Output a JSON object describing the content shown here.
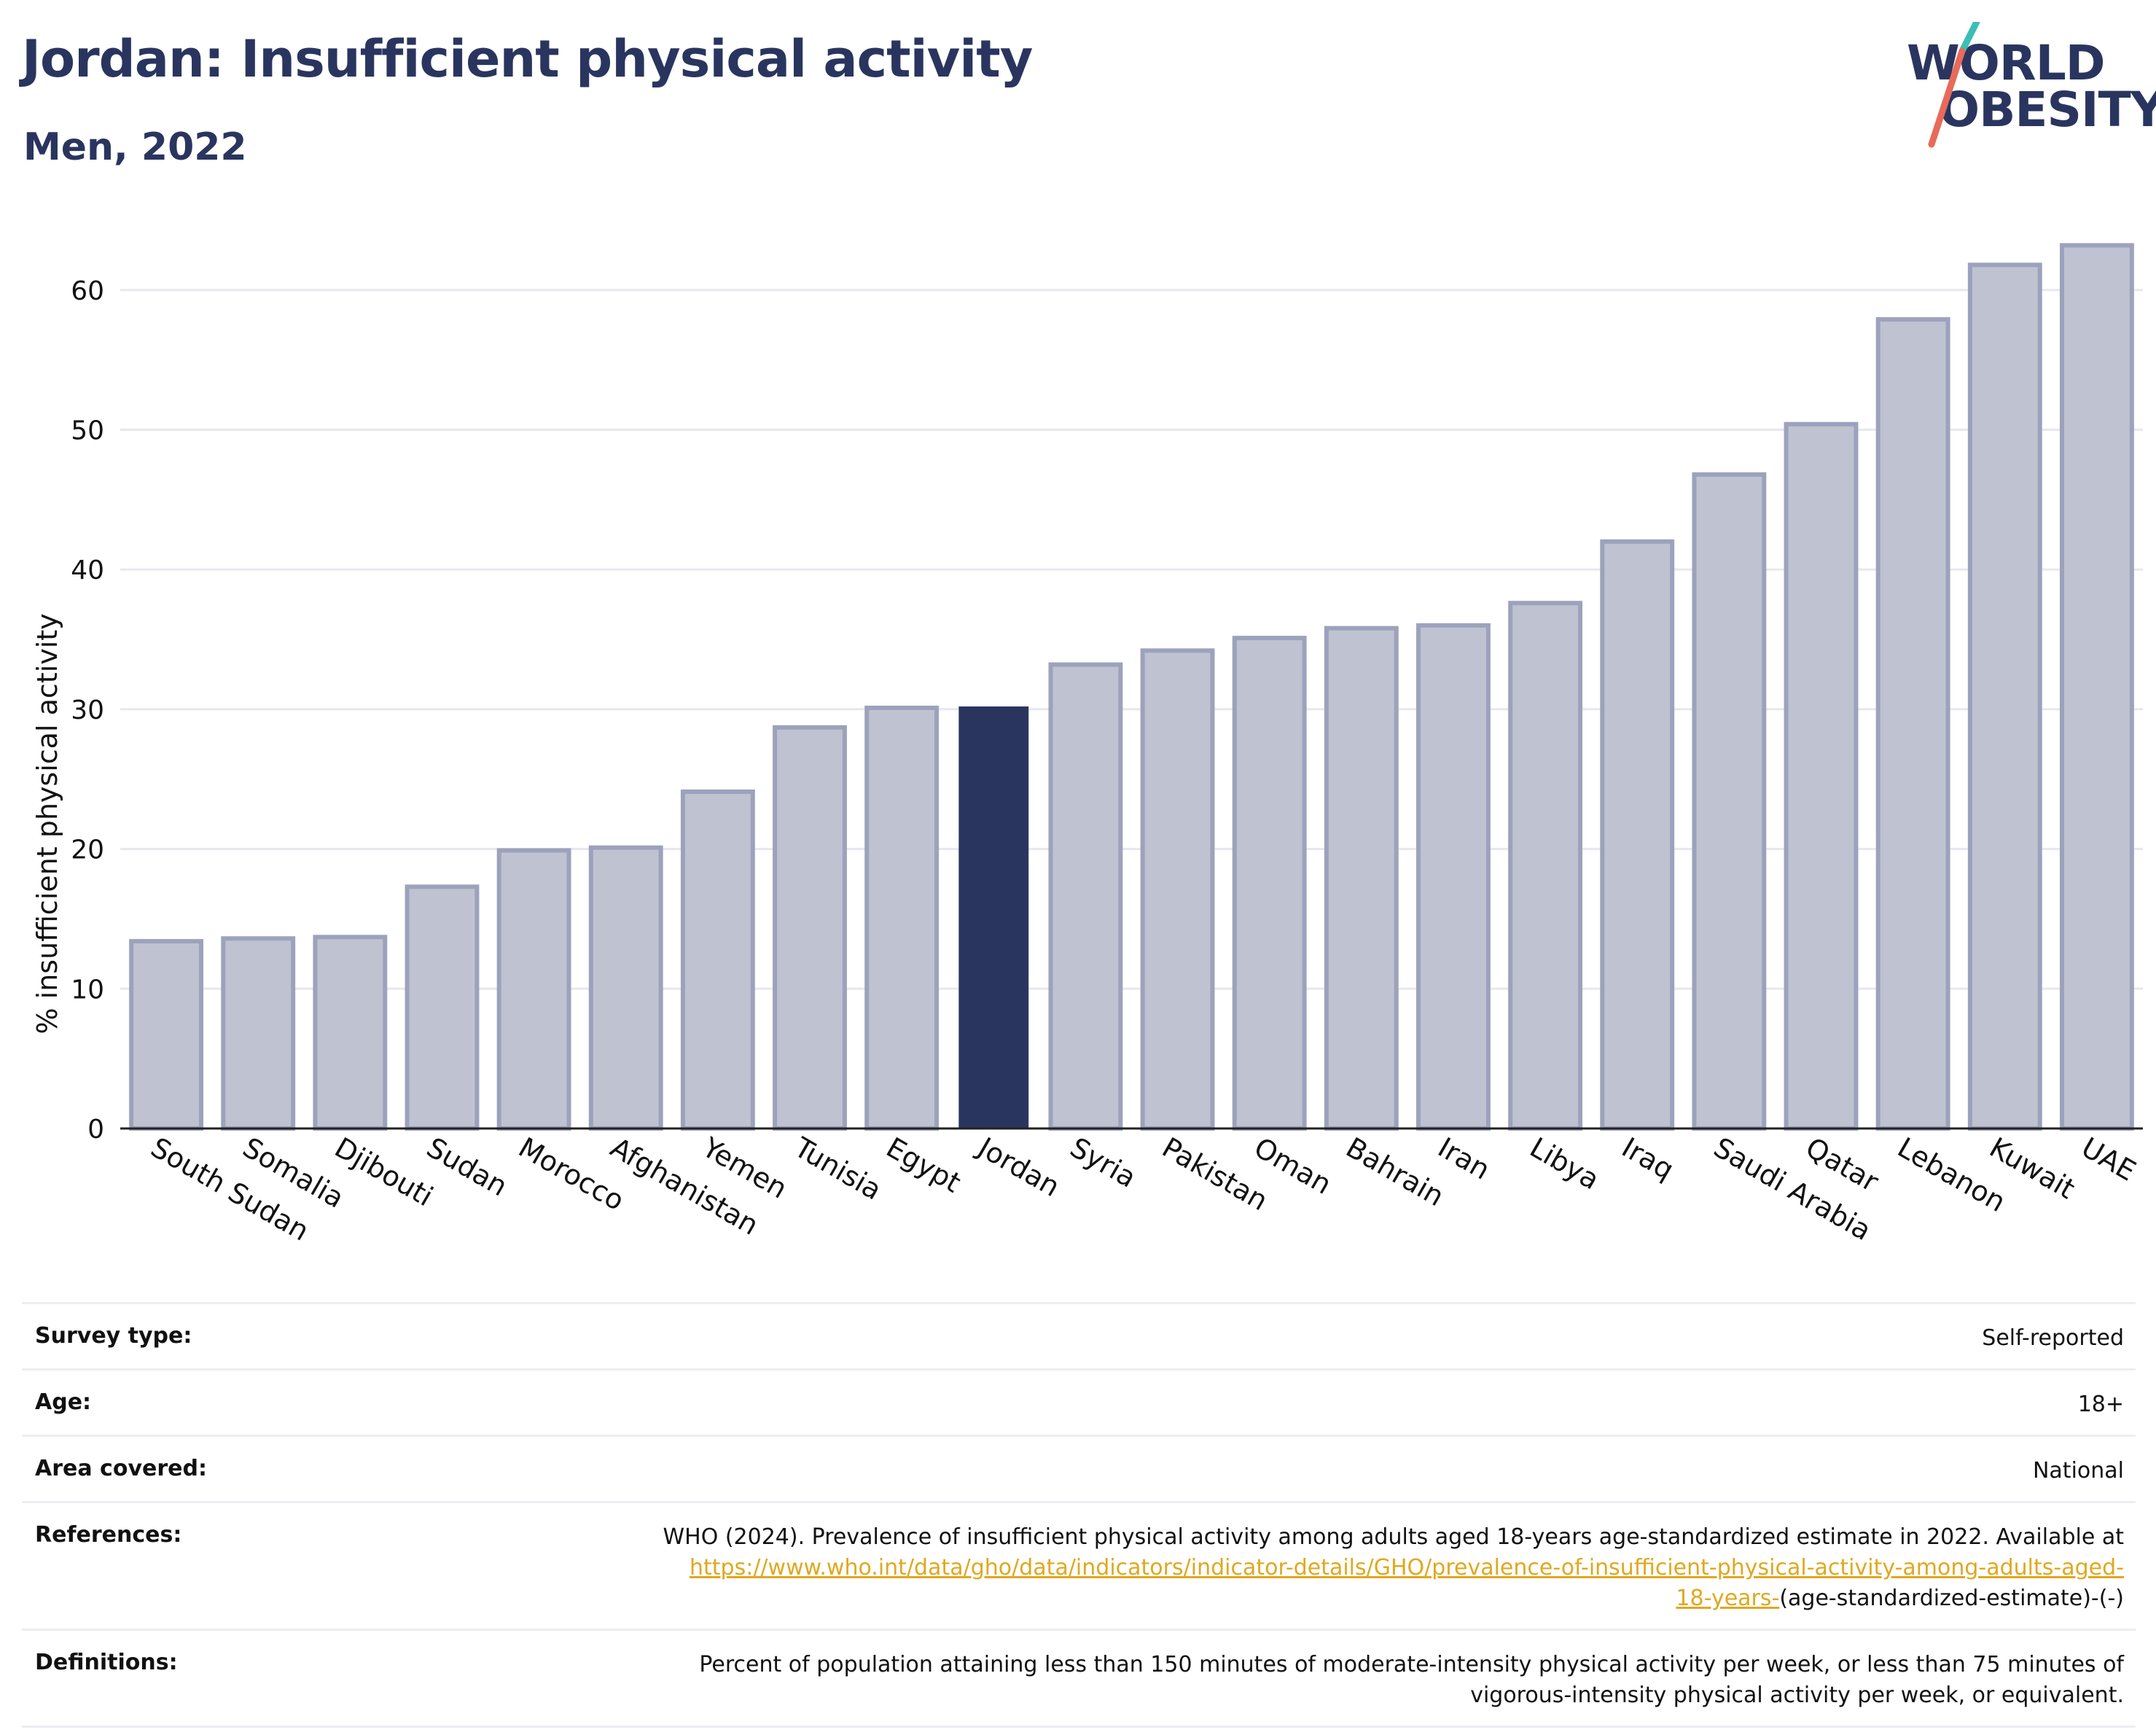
{
  "header": {
    "title": "Jordan: Insufficient physical activity",
    "subtitle": "Men, 2022"
  },
  "logo": {
    "line1": "WORLD",
    "line2": "OBESITY",
    "accent_teal": "#3bbfb4",
    "accent_coral": "#e86a5a"
  },
  "colors": {
    "bar_fill": "#bfc2d0",
    "bar_stroke": "#9da2bc",
    "highlight_fill": "#2a355f",
    "axis_text": "#111111",
    "gridline": "#e6e8ee"
  },
  "chart_data": {
    "type": "bar",
    "title": "",
    "xlabel": "",
    "ylabel": "% insufficient physical activity",
    "ylim": [
      0,
      65
    ],
    "yticks": [
      0,
      10,
      20,
      30,
      40,
      50,
      60
    ],
    "grid": true,
    "highlight": "Jordan",
    "categories": [
      "South Sudan",
      "Somalia",
      "Djibouti",
      "Sudan",
      "Morocco",
      "Afghanistan",
      "Yemen",
      "Tunisia",
      "Egypt",
      "Jordan",
      "Syria",
      "Pakistan",
      "Oman",
      "Bahrain",
      "Iran",
      "Libya",
      "Iraq",
      "Saudi Arabia",
      "Qatar",
      "Lebanon",
      "Kuwait",
      "UAE"
    ],
    "values": [
      13.4,
      13.6,
      13.7,
      17.3,
      19.9,
      20.1,
      24.1,
      28.7,
      30.1,
      30.2,
      33.2,
      34.2,
      35.1,
      35.8,
      36.0,
      37.6,
      42.0,
      46.8,
      50.4,
      57.9,
      61.8,
      63.2
    ]
  },
  "info": {
    "survey_type_label": "Survey type:",
    "survey_type_value": "Self-reported",
    "age_label": "Age:",
    "age_value": "18+",
    "area_label": "Area covered:",
    "area_value": "National",
    "references_label": "References:",
    "references_text": "WHO (2024). Prevalence of insufficient physical activity among adults aged 18-years age-standardized estimate in 2022. Available at",
    "references_link_part1": "https://www.who.int/data/gho/data/indicators/indicator-details/GHO/prevalence-of-insufficient-physical-activity-among-adults-aged-",
    "references_link_part2": "18-years-",
    "references_suffix": "(age-standardized-estimate)-(-)",
    "definitions_label": "Definitions:",
    "definitions_line1": "Percent of population attaining less than 150 minutes of moderate-intensity physical activity per week, or less than 75 minutes of",
    "definitions_line2": "vigorous-intensity physical activity per week, or equivalent."
  }
}
